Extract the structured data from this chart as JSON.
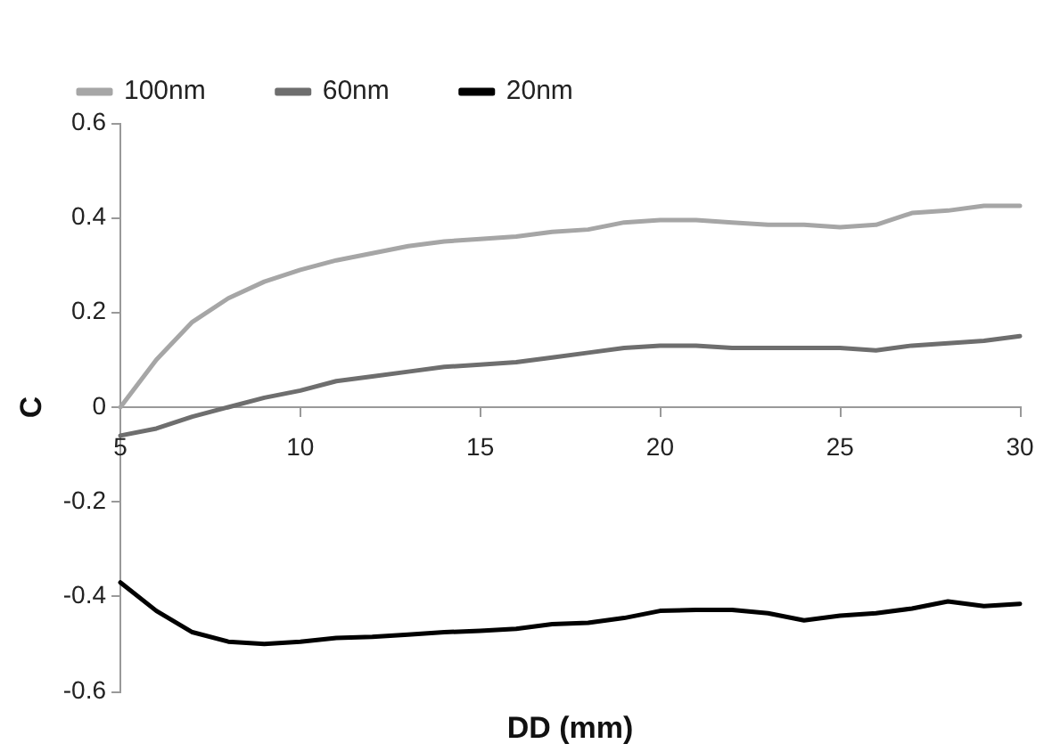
{
  "chart_data": {
    "type": "line",
    "xlabel": "DD (mm)",
    "ylabel": "C",
    "x": [
      5,
      6,
      7,
      8,
      9,
      10,
      11,
      12,
      13,
      14,
      15,
      16,
      17,
      18,
      19,
      20,
      21,
      22,
      23,
      24,
      25,
      26,
      27,
      28,
      29,
      30
    ],
    "series": [
      {
        "name": "100nm",
        "color": "#a6a6a6",
        "values": [
          0,
          0.1,
          0.18,
          0.23,
          0.265,
          0.29,
          0.31,
          0.325,
          0.34,
          0.35,
          0.355,
          0.36,
          0.37,
          0.375,
          0.39,
          0.395,
          0.395,
          0.39,
          0.385,
          0.385,
          0.38,
          0.385,
          0.41,
          0.415,
          0.425,
          0.425
        ]
      },
      {
        "name": "60nm",
        "color": "#6e6e6e",
        "values": [
          -0.06,
          -0.045,
          -0.02,
          0,
          0.02,
          0.035,
          0.055,
          0.065,
          0.075,
          0.085,
          0.09,
          0.095,
          0.105,
          0.115,
          0.125,
          0.13,
          0.13,
          0.125,
          0.125,
          0.125,
          0.125,
          0.12,
          0.13,
          0.135,
          0.14,
          0.15
        ]
      },
      {
        "name": "20nm",
        "color": "#000000",
        "values": [
          -0.37,
          -0.43,
          -0.475,
          -0.495,
          -0.5,
          -0.495,
          -0.487,
          -0.485,
          -0.48,
          -0.475,
          -0.472,
          -0.468,
          -0.458,
          -0.455,
          -0.445,
          -0.43,
          -0.428,
          -0.428,
          -0.435,
          -0.45,
          -0.44,
          -0.435,
          -0.425,
          -0.41,
          -0.42,
          -0.415
        ]
      }
    ],
    "xlim": [
      5,
      30
    ],
    "xticks": [
      5,
      10,
      15,
      20,
      25,
      30
    ],
    "ylim": [
      -0.6,
      0.6
    ],
    "yticks": [
      {
        "value": -0.6,
        "label": "-0.6"
      },
      {
        "value": -0.4,
        "label": "-0.4"
      },
      {
        "value": -0.2,
        "label": "-0.2"
      },
      0,
      {
        "value": 0.2,
        "label": "0.2"
      },
      {
        "value": 0.4,
        "label": "0.4"
      },
      {
        "value": 0.6,
        "label": "0.6"
      }
    ],
    "grid": false,
    "legend": "top left",
    "marker": "none",
    "line_style": "solid"
  }
}
